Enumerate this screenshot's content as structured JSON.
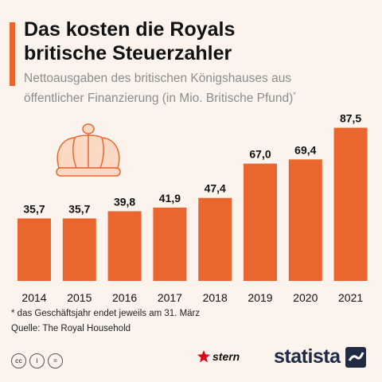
{
  "header": {
    "title": "Das kosten die Royals\nbritische Steuerzahler",
    "subtitle_main": "Nettoausgaben des britischen Königshauses aus\nöffentlicher Finanzierung (in Mio. Britische Pfund)",
    "subtitle_marker": "*"
  },
  "chart_data": {
    "type": "bar",
    "categories": [
      "2014",
      "2015",
      "2016",
      "2017",
      "2018",
      "2019",
      "2020",
      "2021"
    ],
    "values": [
      35.7,
      35.7,
      39.8,
      41.9,
      47.4,
      67.0,
      69.4,
      87.5
    ],
    "data_labels": [
      "35,7",
      "35,7",
      "39,8",
      "41,9",
      "47,4",
      "67,0",
      "69,4",
      "87,5"
    ],
    "ylim": [
      0,
      100
    ],
    "grid": false,
    "bar_color": "#e9672f",
    "decoration": "crown-icon"
  },
  "footer": {
    "footnote": "* das Geschäftsjahr endet jeweils am 31. März",
    "source": "Quelle: The Royal Household",
    "cc_icons": [
      "cc",
      "i",
      "="
    ],
    "stern_label": "stern",
    "statista_label": "statista"
  },
  "colors": {
    "accent": "#e9672f",
    "background": "#fbf3ec",
    "crown_stroke": "#e9672f",
    "crown_fill": "#fbd9c3",
    "statista_navy": "#1f2a44",
    "stern_red": "#e2001a"
  }
}
